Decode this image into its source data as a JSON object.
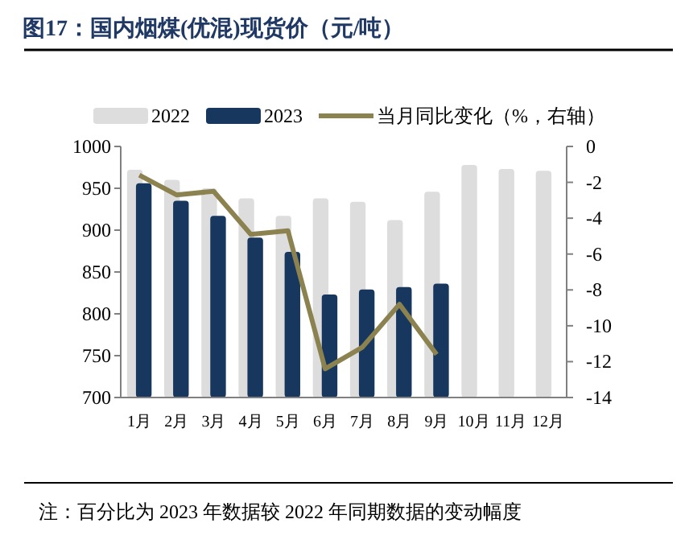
{
  "chart_data": {
    "type": "bar",
    "title": "图17：国内烟煤(优混)现货价（元/吨）",
    "categories": [
      "1月",
      "2月",
      "3月",
      "4月",
      "5月",
      "6月",
      "7月",
      "8月",
      "9月",
      "10月",
      "11月",
      "12月"
    ],
    "series": [
      {
        "name": "2022",
        "color": "#dddddd",
        "values": [
          972,
          960,
          950,
          938,
          917,
          938,
          934,
          912,
          946,
          978,
          973,
          971
        ]
      },
      {
        "name": "2023",
        "color": "#17375e",
        "values": [
          956,
          935,
          917,
          891,
          874,
          823,
          829,
          832,
          836,
          null,
          null,
          null
        ]
      },
      {
        "name": "当月同比变化（%，右轴）",
        "type": "line",
        "axis": "y2",
        "color": "#8c8250",
        "values": [
          -1.6,
          -2.7,
          -2.5,
          -4.9,
          -4.7,
          -12.4,
          -11.2,
          -8.8,
          -11.6,
          null,
          null,
          null
        ]
      }
    ],
    "ylim": [
      700,
      1000
    ],
    "yticks": [
      700,
      750,
      800,
      850,
      900,
      950,
      1000
    ],
    "y2lim": [
      -14,
      0
    ],
    "y2ticks": [
      -14,
      -12,
      -10,
      -8,
      -6,
      -4,
      -2,
      0
    ],
    "legend": "top",
    "annotations": [
      "注：百分比为 2023 年数据较 2022 年同期数据的变动幅度"
    ]
  }
}
